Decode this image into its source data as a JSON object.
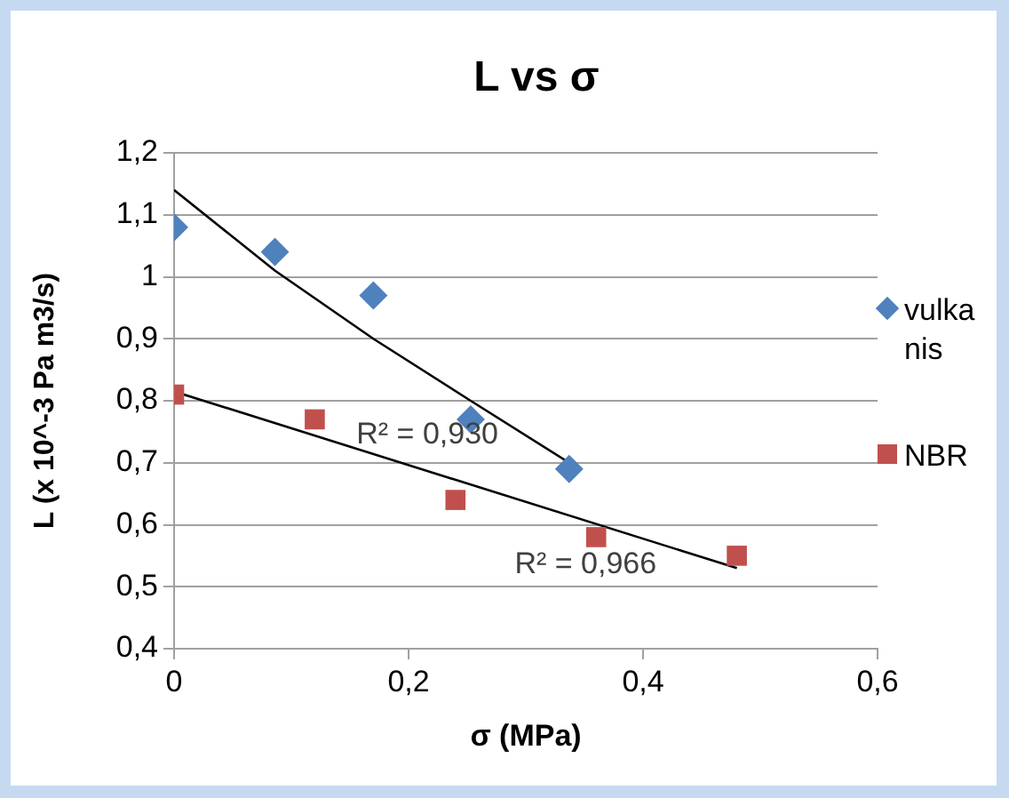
{
  "chart_data": {
    "type": "scatter",
    "title": "L vs σ",
    "xlabel": "σ (MPa)",
    "ylabel": "L (x 10^-3 Pa m3/s)",
    "xlim": [
      0,
      0.6
    ],
    "xticks": [
      0,
      {
        "value": 0.2,
        "label": "0,2"
      },
      {
        "value": 0.4,
        "label": "0,4"
      },
      {
        "value": 0.6,
        "label": "0,6"
      }
    ],
    "ylim": [
      0.4,
      1.2
    ],
    "yticks": [
      {
        "value": 0.4,
        "label": "0,4"
      },
      {
        "value": 0.5,
        "label": "0,5"
      },
      {
        "value": 0.6,
        "label": "0,6"
      },
      {
        "value": 0.7,
        "label": "0,7"
      },
      {
        "value": 0.8,
        "label": "0,8"
      },
      {
        "value": 0.9,
        "label": "0,9"
      },
      {
        "value": 1,
        "label": "1"
      },
      {
        "value": 1.1,
        "label": "1,1"
      },
      {
        "value": 1.2,
        "label": "1,2"
      }
    ],
    "grid": "y",
    "legend": "right",
    "series": [
      {
        "name": "vulkanis",
        "type": "scatter",
        "marker": "diamond",
        "color": "#4f81bd",
        "x": [
          0,
          0.086,
          0.17,
          0.253,
          0.337
        ],
        "values": [
          1.08,
          1.04,
          0.97,
          0.77,
          0.69
        ]
      },
      {
        "name": "NBR",
        "type": "scatter",
        "marker": "square",
        "color": "#c0504d",
        "x": [
          0,
          0.12,
          0.24,
          0.36,
          0.48
        ],
        "values": [
          0.81,
          0.77,
          0.64,
          0.58,
          0.55
        ]
      },
      {
        "type": "line",
        "marker": "none",
        "color": "#000000",
        "x": [
          0,
          0.086,
          0.17,
          0.253,
          0.337
        ],
        "values": [
          1.14,
          1.01,
          0.9,
          0.8,
          0.7
        ]
      },
      {
        "type": "line",
        "marker": "none",
        "color": "#000000",
        "x": [
          0,
          0.48
        ],
        "values": [
          0.815,
          0.53
        ]
      }
    ],
    "annotations": [
      "R² = 0,930",
      "R² = 0,966"
    ]
  }
}
